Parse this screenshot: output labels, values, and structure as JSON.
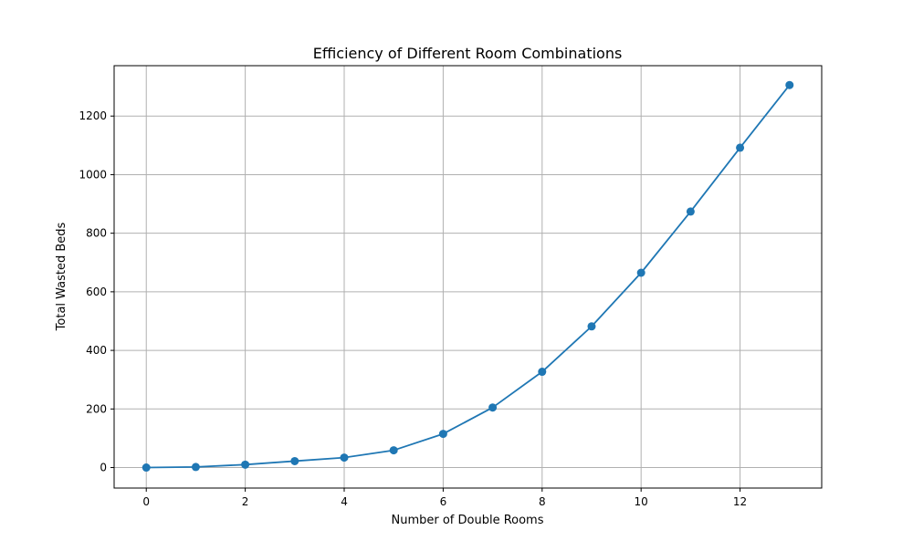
{
  "chart_data": {
    "type": "line",
    "title": "Efficiency of Different Room Combinations",
    "xlabel": "Number of Double Rooms",
    "ylabel": "Total Wasted Beds",
    "x": [
      0,
      1,
      2,
      3,
      4,
      5,
      6,
      7,
      8,
      9,
      10,
      11,
      12,
      13
    ],
    "series": [
      {
        "values": [
          0,
          2,
          10,
          22,
          34,
          59,
          115,
          205,
          327,
          482,
          665,
          874,
          1092,
          1306
        ],
        "color": "#1f77b4",
        "marker": "circle"
      }
    ],
    "xlim": [
      -0.65,
      13.65
    ],
    "ylim": [
      -70,
      1372
    ],
    "xticks": [
      "0",
      "2",
      "4",
      "6",
      "8",
      "10",
      "12"
    ],
    "yticks": [
      "0",
      "200",
      "400",
      "600",
      "800",
      "1000",
      "1200"
    ],
    "grid": true,
    "colors": {
      "grid": "#b0b0b0",
      "axes": "#000000"
    }
  }
}
